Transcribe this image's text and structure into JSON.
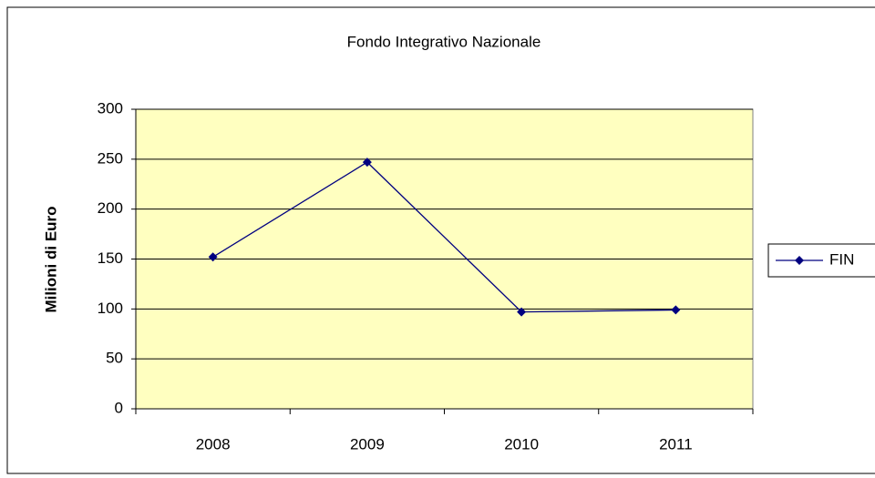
{
  "chart_data": {
    "type": "line",
    "title": "Fondo Integrativo Nazionale",
    "ylabel": "Milioni di Euro",
    "categories": [
      "2008",
      "2009",
      "2010",
      "2011"
    ],
    "series": [
      {
        "name": "FIN",
        "color": "#000080",
        "values": [
          152,
          247,
          97,
          99
        ]
      }
    ],
    "ylim": [
      0,
      300
    ],
    "yticks": [
      0,
      50,
      100,
      150,
      200,
      250,
      300
    ],
    "grid": true,
    "legend": "right",
    "plot_background": "#ffffc0"
  }
}
